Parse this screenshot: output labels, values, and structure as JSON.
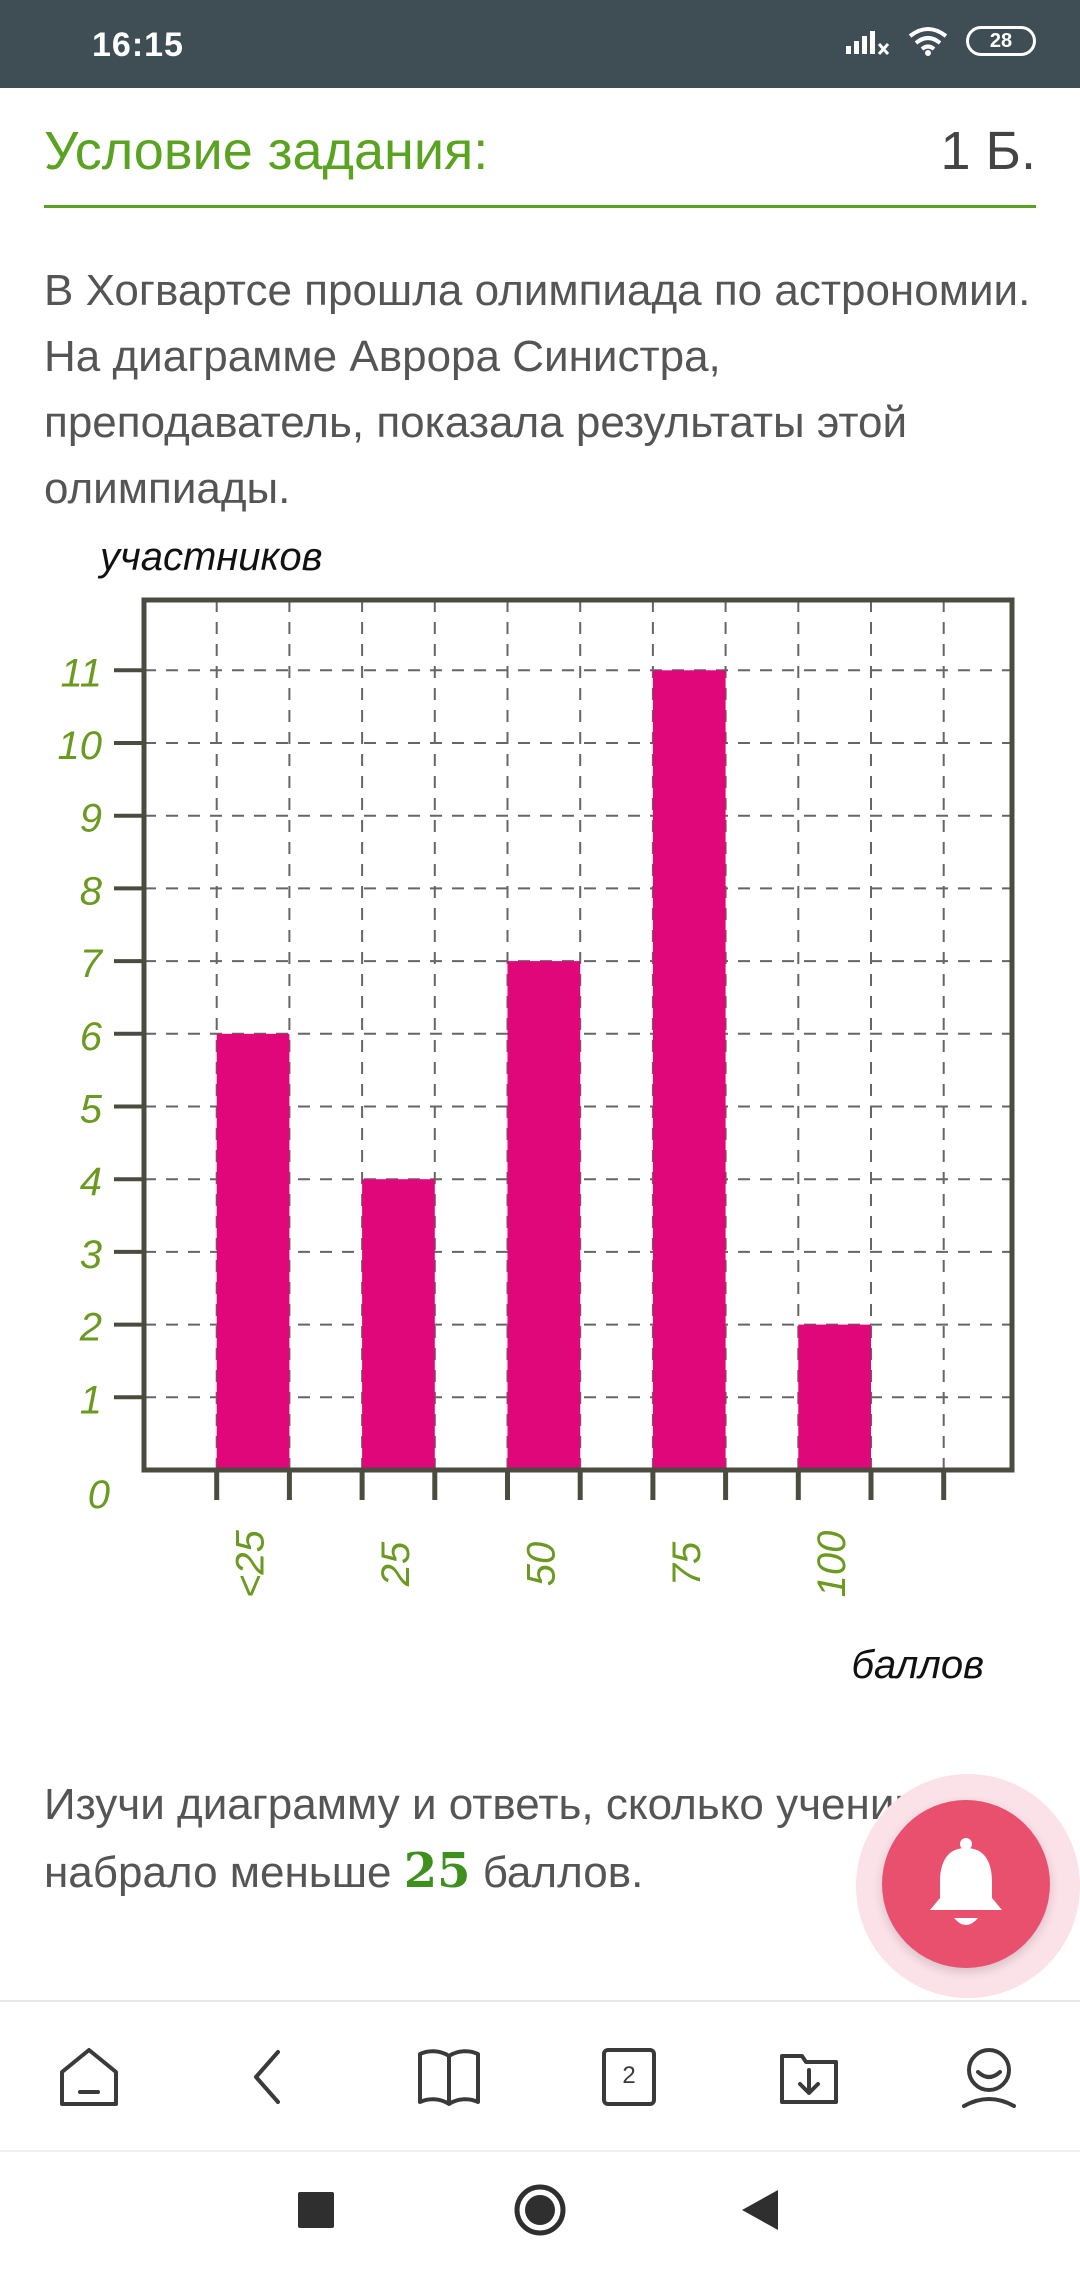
{
  "status_bar": {
    "time": "16:15",
    "battery": "28"
  },
  "task": {
    "title": "Условие задания:",
    "points": "1 Б.",
    "text": "В Хогвартсе прошла олимпиада по астрономии. На диаграмме Аврора Синистра, преподаватель, показала результаты этой олимпиады."
  },
  "chart_data": {
    "type": "bar",
    "categories": [
      "<25",
      "25",
      "50",
      "75",
      "100"
    ],
    "values": [
      6,
      4,
      7,
      11,
      2
    ],
    "ylabel": "участников",
    "xlabel": "баллов",
    "ylim": [
      0,
      12
    ],
    "yticks": [
      0,
      1,
      2,
      3,
      4,
      5,
      6,
      7,
      8,
      9,
      10,
      11
    ],
    "grid": true,
    "colors": {
      "bar": "#e0077a",
      "tick_label": "#6a9a1f",
      "frame": "#4b4b3f",
      "grid": "#666666"
    }
  },
  "question": {
    "before": "Изучи диаграмму и ответь, сколько учеников набрало меньше ",
    "number": "25",
    "after": " баллов."
  },
  "icons": [
    "home-icon",
    "back-icon",
    "book-icon",
    "tabs-icon",
    "download-icon",
    "profile-icon",
    "bell-icon"
  ],
  "bottom_nav": {
    "tabs_count": "2"
  }
}
